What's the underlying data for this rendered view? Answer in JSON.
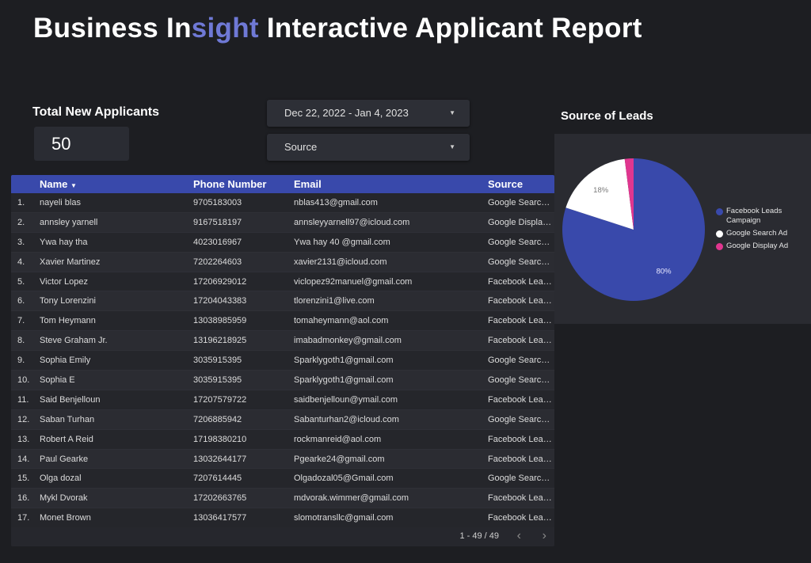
{
  "header": {
    "title_prefix": "Business In",
    "title_accent": "sight",
    "title_suffix": " Interactive Applicant Report"
  },
  "kpi": {
    "label": "Total New Applicants",
    "value": "50"
  },
  "filters": {
    "date_range": "Dec 22, 2022 - Jan 4, 2023",
    "source": "Source",
    "caret_icon": "dropdown-caret-icon"
  },
  "table": {
    "columns": [
      "Name",
      "Phone Number",
      "Email",
      "Source"
    ],
    "sort_icon": "sort-desc-icon",
    "rows": [
      {
        "n": "1.",
        "name": "nayeli blas",
        "phone": "9705183003",
        "email": "nblas413@gmail.com",
        "source": "Google Search Ad"
      },
      {
        "n": "2.",
        "name": "annsley yarnell",
        "phone": "9167518197",
        "email": "annsleyyarnell97@icloud.com",
        "source": "Google Display Ad"
      },
      {
        "n": "3.",
        "name": "Ywa hay tha",
        "phone": "4023016967",
        "email": "Ywa hay 40 @gmail.com",
        "source": "Google Search Ad"
      },
      {
        "n": "4.",
        "name": "Xavier Martinez",
        "phone": "7202264603",
        "email": "xavier2131@icloud.com",
        "source": "Google Search Ad"
      },
      {
        "n": "5.",
        "name": "Victor Lopez",
        "phone": "17206929012",
        "email": "viclopez92manuel@gmail.com",
        "source": "Facebook Leads Campaign"
      },
      {
        "n": "6.",
        "name": "Tony Lorenzini",
        "phone": "17204043383",
        "email": "tlorenzini1@live.com",
        "source": "Facebook Leads Campaign"
      },
      {
        "n": "7.",
        "name": "Tom Heymann",
        "phone": "13038985959",
        "email": "tomaheymann@aol.com",
        "source": "Facebook Leads Campaign"
      },
      {
        "n": "8.",
        "name": "Steve Graham Jr.",
        "phone": "13196218925",
        "email": "imabadmonkey@gmail.com",
        "source": "Facebook Leads Campaign"
      },
      {
        "n": "9.",
        "name": "Sophia Emily",
        "phone": "3035915395",
        "email": "Sparklygoth1@gmail.com",
        "source": "Google Search Ad"
      },
      {
        "n": "10.",
        "name": "Sophia E",
        "phone": "3035915395",
        "email": "Sparklygoth1@gmail.com",
        "source": "Google Search Ad"
      },
      {
        "n": "11.",
        "name": "Said Benjelloun",
        "phone": "17207579722",
        "email": "saidbenjelloun@ymail.com",
        "source": "Facebook Leads Campaign"
      },
      {
        "n": "12.",
        "name": "Saban Turhan",
        "phone": "7206885942",
        "email": "Sabanturhan2@icloud.com",
        "source": "Google Search Ad"
      },
      {
        "n": "13.",
        "name": "Robert A Reid",
        "phone": "17198380210",
        "email": "rockmanreid@aol.com",
        "source": "Facebook Leads Campaign"
      },
      {
        "n": "14.",
        "name": "Paul Gearke",
        "phone": "13032644177",
        "email": "Pgearke24@gmail.com",
        "source": "Facebook Leads Campaign"
      },
      {
        "n": "15.",
        "name": "Olga dozal",
        "phone": "7207614445",
        "email": "Olgadozal05@Gmail.com",
        "source": "Google Search Ad"
      },
      {
        "n": "16.",
        "name": "Mykl Dvorak",
        "phone": "17202663765",
        "email": "mdvorak.wimmer@gmail.com",
        "source": "Facebook Leads Campaign"
      },
      {
        "n": "17.",
        "name": "Monet Brown",
        "phone": "13036417577",
        "email": "slomotransllc@gmail.com",
        "source": "Facebook Leads Campaign"
      }
    ],
    "pagination": {
      "range": "1 - 49 / 49",
      "prev_icon": "chevron-left-icon",
      "next_icon": "chevron-right-icon"
    }
  },
  "chart": {
    "title": "Source of Leads"
  },
  "chart_data": {
    "type": "pie",
    "title": "Source of Leads",
    "categories": [
      "Facebook Leads Campaign",
      "Google Search Ad",
      "Google Display Ad"
    ],
    "values": [
      80,
      18,
      2
    ],
    "colors": [
      "#3949ab",
      "#ffffff",
      "#e0368f"
    ],
    "data_labels": [
      "80%",
      "18%",
      ""
    ],
    "legend_position": "right"
  }
}
